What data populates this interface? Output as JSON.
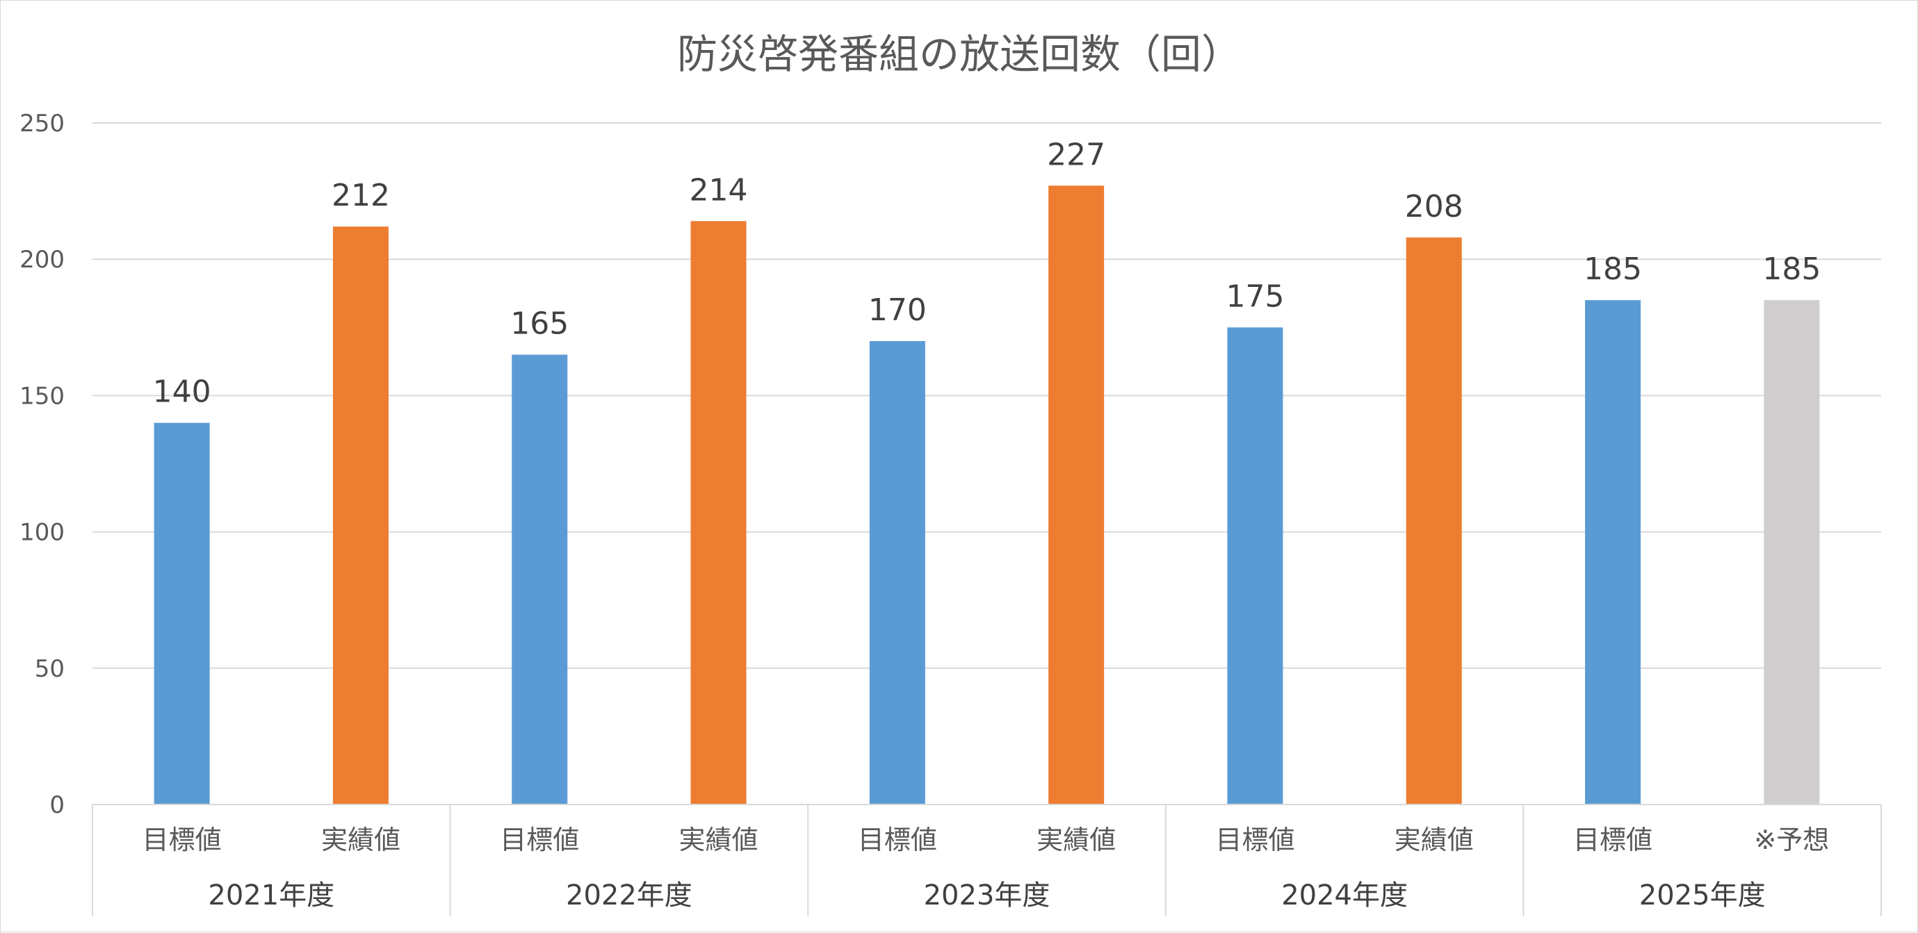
{
  "chart_data": {
    "type": "bar",
    "title": "防災啓発番組の放送回数（回）",
    "xlabel": "",
    "ylabel": "",
    "ylim": [
      0,
      250
    ],
    "yticks": [
      0,
      50,
      100,
      150,
      200,
      250
    ],
    "grid": true,
    "legend": "none",
    "groups": [
      {
        "label": "2021年度",
        "bars": [
          {
            "label": "目標値",
            "value": 140,
            "color": "#5b9bd5"
          },
          {
            "label": "実績値",
            "value": 212,
            "color": "#ed7d31"
          }
        ]
      },
      {
        "label": "2022年度",
        "bars": [
          {
            "label": "目標値",
            "value": 165,
            "color": "#5b9bd5"
          },
          {
            "label": "実績値",
            "value": 214,
            "color": "#ed7d31"
          }
        ]
      },
      {
        "label": "2023年度",
        "bars": [
          {
            "label": "目標値",
            "value": 170,
            "color": "#5b9bd5"
          },
          {
            "label": "実績値",
            "value": 227,
            "color": "#ed7d31"
          }
        ]
      },
      {
        "label": "2024年度",
        "bars": [
          {
            "label": "目標値",
            "value": 175,
            "color": "#5b9bd5"
          },
          {
            "label": "実績値",
            "value": 208,
            "color": "#ed7d31"
          }
        ]
      },
      {
        "label": "2025年度",
        "bars": [
          {
            "label": "目標値",
            "value": 185,
            "color": "#5b9bd5"
          },
          {
            "label": "※予想",
            "value": 185,
            "color": "#d0cece"
          }
        ]
      }
    ]
  }
}
